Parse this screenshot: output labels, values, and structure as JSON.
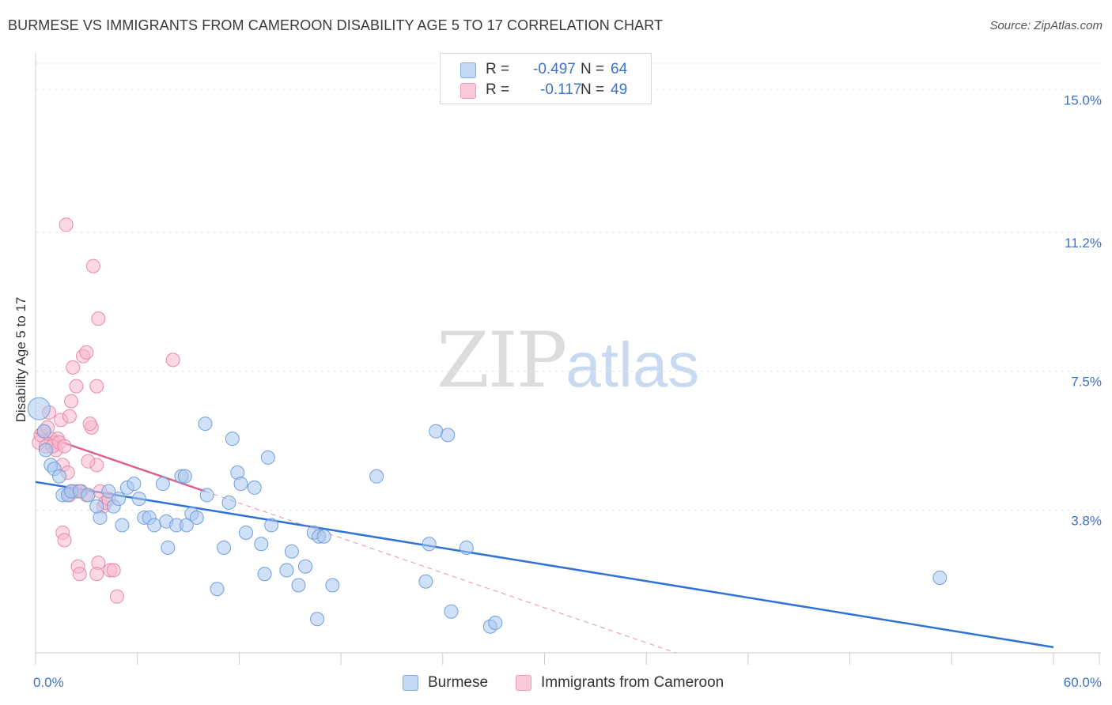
{
  "header": {
    "title": "BURMESE VS IMMIGRANTS FROM CAMEROON DISABILITY AGE 5 TO 17 CORRELATION CHART",
    "source": "Source: ZipAtlas.com"
  },
  "watermark": {
    "zip": "ZIP",
    "atlas": "atlas"
  },
  "legend": {
    "r_label": "R =",
    "n_label": "N =",
    "rows": [
      {
        "r": "-0.497",
        "n": "64"
      },
      {
        "r": "-0.117",
        "n": "49"
      }
    ]
  },
  "colors": {
    "burmese_fill": "#aac8f0",
    "burmese_stroke": "#6f9fdc",
    "burmese_line": "#2f72d6",
    "cameroon_fill": "#f7b8cc",
    "cameroon_stroke": "#e88aa8",
    "cameroon_line": "#e0608a",
    "tick_label": "#3b72cc",
    "grid": "#e3e3e3"
  },
  "chart_data": {
    "type": "scatter",
    "title": "BURMESE VS IMMIGRANTS FROM CAMEROON DISABILITY AGE 5 TO 17 CORRELATION CHART",
    "xlabel": "",
    "ylabel": "Disability Age 5 to 17",
    "xlim": [
      0,
      60
    ],
    "ylim": [
      0,
      15.7
    ],
    "x_tick_labels": [
      "0.0%",
      "60.0%"
    ],
    "y_ticks": [
      3.8,
      7.5,
      11.2,
      15.0
    ],
    "y_tick_labels": [
      "3.8%",
      "7.5%",
      "11.2%",
      "15.0%"
    ],
    "grid": true,
    "series": [
      {
        "name": "Burmese",
        "r": -0.497,
        "n": 64,
        "points": [
          [
            0.2,
            6.5
          ],
          [
            0.5,
            5.9
          ],
          [
            0.6,
            5.4
          ],
          [
            0.9,
            5.0
          ],
          [
            1.1,
            4.9
          ],
          [
            1.4,
            4.7
          ],
          [
            1.6,
            4.2
          ],
          [
            1.9,
            4.2
          ],
          [
            2.1,
            4.3
          ],
          [
            2.6,
            4.3
          ],
          [
            3.1,
            4.2
          ],
          [
            3.8,
            3.6
          ],
          [
            3.6,
            3.9
          ],
          [
            4.3,
            4.3
          ],
          [
            4.6,
            3.9
          ],
          [
            4.9,
            4.1
          ],
          [
            5.1,
            3.4
          ],
          [
            5.4,
            4.4
          ],
          [
            5.8,
            4.5
          ],
          [
            6.1,
            4.1
          ],
          [
            6.4,
            3.6
          ],
          [
            6.7,
            3.6
          ],
          [
            7.0,
            3.4
          ],
          [
            7.7,
            3.5
          ],
          [
            7.5,
            4.5
          ],
          [
            7.8,
            2.8
          ],
          [
            8.3,
            3.4
          ],
          [
            8.9,
            3.4
          ],
          [
            8.6,
            4.7
          ],
          [
            8.8,
            4.7
          ],
          [
            9.2,
            3.7
          ],
          [
            9.5,
            3.6
          ],
          [
            10.1,
            4.2
          ],
          [
            10.0,
            6.1
          ],
          [
            10.7,
            1.7
          ],
          [
            11.1,
            2.8
          ],
          [
            11.4,
            4.0
          ],
          [
            11.6,
            5.7
          ],
          [
            11.9,
            4.8
          ],
          [
            12.1,
            4.5
          ],
          [
            12.4,
            3.2
          ],
          [
            12.9,
            4.4
          ],
          [
            13.3,
            2.9
          ],
          [
            13.5,
            2.1
          ],
          [
            13.7,
            5.2
          ],
          [
            13.9,
            3.4
          ],
          [
            14.8,
            2.2
          ],
          [
            15.1,
            2.7
          ],
          [
            15.5,
            1.8
          ],
          [
            15.9,
            2.3
          ],
          [
            16.4,
            3.2
          ],
          [
            16.7,
            3.1
          ],
          [
            17.0,
            3.1
          ],
          [
            16.6,
            0.9
          ],
          [
            17.5,
            1.8
          ],
          [
            20.1,
            4.7
          ],
          [
            23.2,
            2.9
          ],
          [
            23.0,
            1.9
          ],
          [
            23.6,
            5.9
          ],
          [
            24.3,
            5.8
          ],
          [
            24.5,
            1.1
          ],
          [
            25.4,
            2.8
          ],
          [
            26.8,
            0.7
          ],
          [
            27.1,
            0.8
          ],
          [
            53.3,
            2.0
          ]
        ],
        "trend": {
          "x": [
            0,
            60
          ],
          "y": [
            4.55,
            0.15
          ]
        }
      },
      {
        "name": "Immigrants from Cameroon",
        "r": -0.117,
        "n": 49,
        "points": [
          [
            0.2,
            5.6
          ],
          [
            0.3,
            5.8
          ],
          [
            0.5,
            5.9
          ],
          [
            0.7,
            6.0
          ],
          [
            0.9,
            5.7
          ],
          [
            0.6,
            5.5
          ],
          [
            0.8,
            6.4
          ],
          [
            1.1,
            5.6
          ],
          [
            1.2,
            5.4
          ],
          [
            1.3,
            5.7
          ],
          [
            1.0,
            5.5
          ],
          [
            1.4,
            5.6
          ],
          [
            1.7,
            5.5
          ],
          [
            1.5,
            6.2
          ],
          [
            1.6,
            5.0
          ],
          [
            2.0,
            4.2
          ],
          [
            2.2,
            4.3
          ],
          [
            1.9,
            4.8
          ],
          [
            2.4,
            4.3
          ],
          [
            1.6,
            3.2
          ],
          [
            1.7,
            3.0
          ],
          [
            2.0,
            6.3
          ],
          [
            2.1,
            6.7
          ],
          [
            2.2,
            7.6
          ],
          [
            2.4,
            7.1
          ],
          [
            1.8,
            11.4
          ],
          [
            2.8,
            7.9
          ],
          [
            3.0,
            8.0
          ],
          [
            3.3,
            6.0
          ],
          [
            3.2,
            6.1
          ],
          [
            3.6,
            7.1
          ],
          [
            3.4,
            10.3
          ],
          [
            3.7,
            8.9
          ],
          [
            3.6,
            5.0
          ],
          [
            3.1,
            5.1
          ],
          [
            2.5,
            2.3
          ],
          [
            2.6,
            2.1
          ],
          [
            3.7,
            2.4
          ],
          [
            3.6,
            2.1
          ],
          [
            4.0,
            3.9
          ],
          [
            4.4,
            2.2
          ],
          [
            4.6,
            2.2
          ],
          [
            4.8,
            1.5
          ],
          [
            8.1,
            7.8
          ],
          [
            2.7,
            4.3
          ],
          [
            3.0,
            4.2
          ],
          [
            3.8,
            4.3
          ],
          [
            4.1,
            4.0
          ],
          [
            4.3,
            4.1
          ]
        ],
        "trend": {
          "x": [
            0,
            10
          ],
          "y": [
            5.85,
            4.3
          ]
        },
        "trend_extended": {
          "x": [
            0,
            60
          ],
          "y": [
            5.85,
            -3.45
          ]
        }
      }
    ]
  },
  "bottom_legend": [
    "Burmese",
    "Immigrants from Cameroon"
  ]
}
